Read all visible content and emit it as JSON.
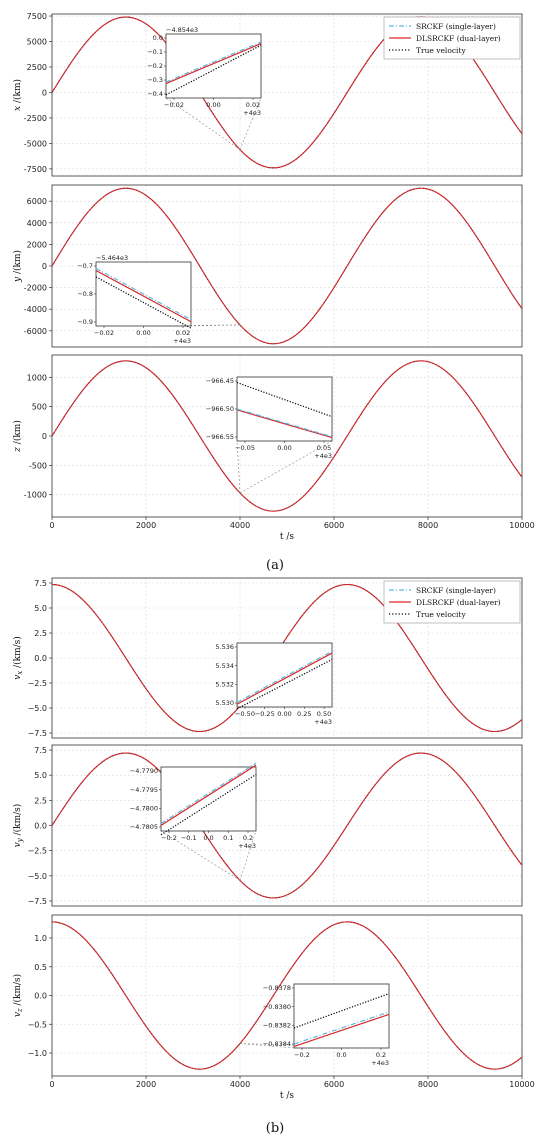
{
  "chart_data": [
    {
      "type": "line",
      "group": "a",
      "ylabel_main": "x",
      "ylabel_unit": "/(km)",
      "ylim": [
        -8200,
        7700
      ],
      "yticks": [
        7500,
        5000,
        2500,
        0,
        -2500,
        -5000,
        -7500
      ],
      "xlim": [
        0,
        10000
      ],
      "show_xticks": false,
      "series": [
        {
          "name": "SRCKF (single-layer)",
          "amp": 7400,
          "period": 6280,
          "phase": 0.0
        },
        {
          "name": "DLSRCKF (dual-layer)",
          "amp": 7400,
          "period": 6280,
          "phase": 0.0
        },
        {
          "name": "True velocity",
          "amp": 7400,
          "period": 6280,
          "phase": 0.0
        }
      ],
      "inset": {
        "offset_label": "−4.854e3",
        "xrange": [
          -0.03,
          0.03
        ],
        "xticks": [
          "−0.02",
          "0.00",
          "0.02"
        ],
        "yrange": [
          -0.4,
          0.0
        ],
        "yticks": [
          "0.0",
          "−0.1",
          "−0.2",
          "−0.3",
          "−0.4"
        ],
        "x_offset": "+4e3",
        "lines": [
          [
            -0.3,
            -0.05
          ],
          [
            -0.31,
            -0.06
          ],
          [
            -0.38,
            -0.07
          ]
        ],
        "zoom_point": [
          4000,
          -4854
        ]
      }
    },
    {
      "type": "line",
      "group": "a",
      "ylabel_main": "y",
      "ylabel_unit": "/(km)",
      "ylim": [
        -7500,
        7500
      ],
      "yticks": [
        6000,
        4000,
        2000,
        0,
        -2000,
        -4000,
        -6000
      ],
      "xlim": [
        0,
        10000
      ],
      "show_xticks": false,
      "series": [
        {
          "name": "SRCKF (single-layer)",
          "amp": 7200,
          "period": 6280,
          "phase": 0.0
        },
        {
          "name": "DLSRCKF (dual-layer)",
          "amp": 7200,
          "period": 6280,
          "phase": 0.0
        },
        {
          "name": "True velocity",
          "amp": 7200,
          "period": 6280,
          "phase": 0.0
        }
      ],
      "inset": {
        "offset_label": "−5.464e3",
        "xrange": [
          -0.025,
          0.025
        ],
        "xticks": [
          "−0.02",
          "0.00",
          "0.02"
        ],
        "yrange": [
          -0.95,
          -0.65
        ],
        "yticks": [
          "−0.7",
          "−0.8",
          "−0.9"
        ],
        "x_offset": "+4e3",
        "lines": [
          [
            -0.68,
            -0.92
          ],
          [
            -0.69,
            -0.93
          ],
          [
            -0.72,
            -0.96
          ]
        ],
        "zoom_point": [
          4000,
          -5464
        ]
      }
    },
    {
      "type": "line",
      "group": "a",
      "ylabel_main": "z",
      "ylabel_unit": "/(km)",
      "ylim": [
        -1380,
        1380
      ],
      "yticks": [
        1000,
        500,
        0,
        -500,
        -1000
      ],
      "xlim": [
        0,
        10000
      ],
      "show_xticks": true,
      "xticks": [
        0,
        2000,
        4000,
        6000,
        8000,
        10000
      ],
      "xlabel": "t /s",
      "series": [
        {
          "name": "SRCKF (single-layer)",
          "amp": 1280,
          "period": 6280,
          "phase": 0.0
        },
        {
          "name": "DLSRCKF (dual-layer)",
          "amp": 1280,
          "period": 6280,
          "phase": 0.0
        },
        {
          "name": "True velocity",
          "amp": 1280,
          "period": 6280,
          "phase": 0.0
        }
      ],
      "inset": {
        "offset_label": "",
        "xrange": [
          -0.05,
          0.05
        ],
        "xticks": [
          "−0.05",
          "0.00",
          "0.05"
        ],
        "yrange": [
          -966.585,
          -966.435
        ],
        "yticks": [
          "−966.45",
          "−966.50",
          "−966.55"
        ],
        "x_offset": "+4e3",
        "lines": [
          [
            -966.51,
            -966.575
          ],
          [
            -966.512,
            -966.577
          ],
          [
            -966.448,
            -966.528
          ]
        ],
        "zoom_point": [
          4000,
          -966
        ]
      }
    },
    {
      "type": "line",
      "group": "b",
      "ylabel_main": "v",
      "ylabel_sub": "x",
      "ylabel_unit": "/(km/s)",
      "ylim": [
        -8.0,
        8.0
      ],
      "yticks": [
        "7.5",
        "5.0",
        "2.5",
        "0.0",
        "−2.5",
        "−5.0",
        "−7.5"
      ],
      "ytick_values": [
        7.5,
        5.0,
        2.5,
        0.0,
        -2.5,
        -5.0,
        -7.5
      ],
      "xlim": [
        0,
        10000
      ],
      "show_xticks": false,
      "series": [
        {
          "name": "SRCKF (single-layer)",
          "amp": 7.35,
          "period": 6280,
          "phase": 1.5708
        },
        {
          "name": "DLSRCKF (dual-layer)",
          "amp": 7.35,
          "period": 6280,
          "phase": 1.5708
        },
        {
          "name": "True velocity",
          "amp": 7.35,
          "period": 6280,
          "phase": 1.5708
        }
      ],
      "inset": {
        "offset_label": "",
        "xrange": [
          -0.5,
          0.5
        ],
        "xticks": [
          "−0.50",
          "−0.25",
          "0.00",
          "0.25",
          "0.50"
        ],
        "yrange": [
          5.53,
          5.537
        ],
        "yticks": [
          "5.536",
          "5.534",
          "5.532",
          "5.530"
        ],
        "x_offset": "+4e3",
        "lines": [
          [
            5.5305,
            5.5361
          ],
          [
            5.5303,
            5.5359
          ],
          [
            5.5298,
            5.5352
          ]
        ],
        "zoom_point": [
          4000,
          5.53
        ]
      }
    },
    {
      "type": "line",
      "group": "b",
      "ylabel_main": "v",
      "ylabel_sub": "y",
      "ylabel_unit": "/(km/s)",
      "ylim": [
        -8.0,
        8.0
      ],
      "yticks": [
        "7.5",
        "5.0",
        "2.5",
        "0.0",
        "−2.5",
        "−5.0",
        "−7.5"
      ],
      "ytick_values": [
        7.5,
        5.0,
        2.5,
        0.0,
        -2.5,
        -5.0,
        -7.5
      ],
      "xlim": [
        0,
        10000
      ],
      "show_xticks": false,
      "series": [
        {
          "name": "SRCKF (single-layer)",
          "amp": 7.2,
          "period": 6280,
          "phase": 0.0
        },
        {
          "name": "DLSRCKF (dual-layer)",
          "amp": 7.2,
          "period": 6280,
          "phase": 0.0
        },
        {
          "name": "True velocity",
          "amp": 7.2,
          "period": 6280,
          "phase": 0.0
        }
      ],
      "inset": {
        "offset_label": "",
        "xrange": [
          -0.2,
          0.2
        ],
        "xticks": [
          "−0.2",
          "−0.1",
          "0.0",
          "0.1",
          "0.2"
        ],
        "yrange": [
          -4.7805,
          -4.7788
        ],
        "yticks": [
          "−4.7790",
          "−4.7795",
          "−4.7800",
          "−4.7805"
        ],
        "x_offset": "+4e3",
        "lines": [
          [
            -4.7803,
            -4.7787
          ],
          [
            -4.78035,
            -4.77875
          ],
          [
            -4.7806,
            -4.779
          ]
        ],
        "zoom_point": [
          4000,
          -4.78
        ]
      }
    },
    {
      "type": "line",
      "group": "b",
      "ylabel_main": "v",
      "ylabel_sub": "z",
      "ylabel_unit": "/(km/s)",
      "ylim": [
        -1.4,
        1.4
      ],
      "yticks": [
        "1.0",
        "0.5",
        "0.0",
        "−0.5",
        "−1.0"
      ],
      "ytick_values": [
        1.0,
        0.5,
        0.0,
        -0.5,
        -1.0
      ],
      "xlim": [
        0,
        10000
      ],
      "show_xticks": true,
      "xticks": [
        0,
        2000,
        4000,
        6000,
        8000,
        10000
      ],
      "xlabel": "t /s",
      "series": [
        {
          "name": "SRCKF (single-layer)",
          "amp": 1.28,
          "period": 6280,
          "phase": 1.5708
        },
        {
          "name": "DLSRCKF (dual-layer)",
          "amp": 1.28,
          "period": 6280,
          "phase": 1.5708
        },
        {
          "name": "True velocity",
          "amp": 1.28,
          "period": 6280,
          "phase": 1.5708
        }
      ],
      "inset": {
        "offset_label": "",
        "xrange": [
          -0.25,
          0.25
        ],
        "xticks": [
          "−0.2",
          "0.0",
          "0.2"
        ],
        "yrange": [
          -0.8385,
          -0.8377
        ],
        "yticks": [
          "−0.8378",
          "−0.8380",
          "−0.8382",
          "−0.8384"
        ],
        "x_offset": "+4e3",
        "lines": [
          [
            -0.83845,
            -0.83805
          ],
          [
            -0.83848,
            -0.83808
          ],
          [
            -0.83825,
            -0.83782
          ]
        ],
        "zoom_point": [
          4000,
          -0.838
        ]
      }
    }
  ],
  "legend": {
    "entries": [
      "SRCKF (single-layer)",
      "DLSRCKF (dual-layer)",
      "True velocity"
    ],
    "position": "top-right"
  },
  "colors": {
    "srckf": "#5bb8e0",
    "dlsrckf": "#d62728",
    "true": "#000000",
    "grid": "#d9d9d9"
  },
  "captions": {
    "a": "(a)",
    "b": "(b)"
  }
}
